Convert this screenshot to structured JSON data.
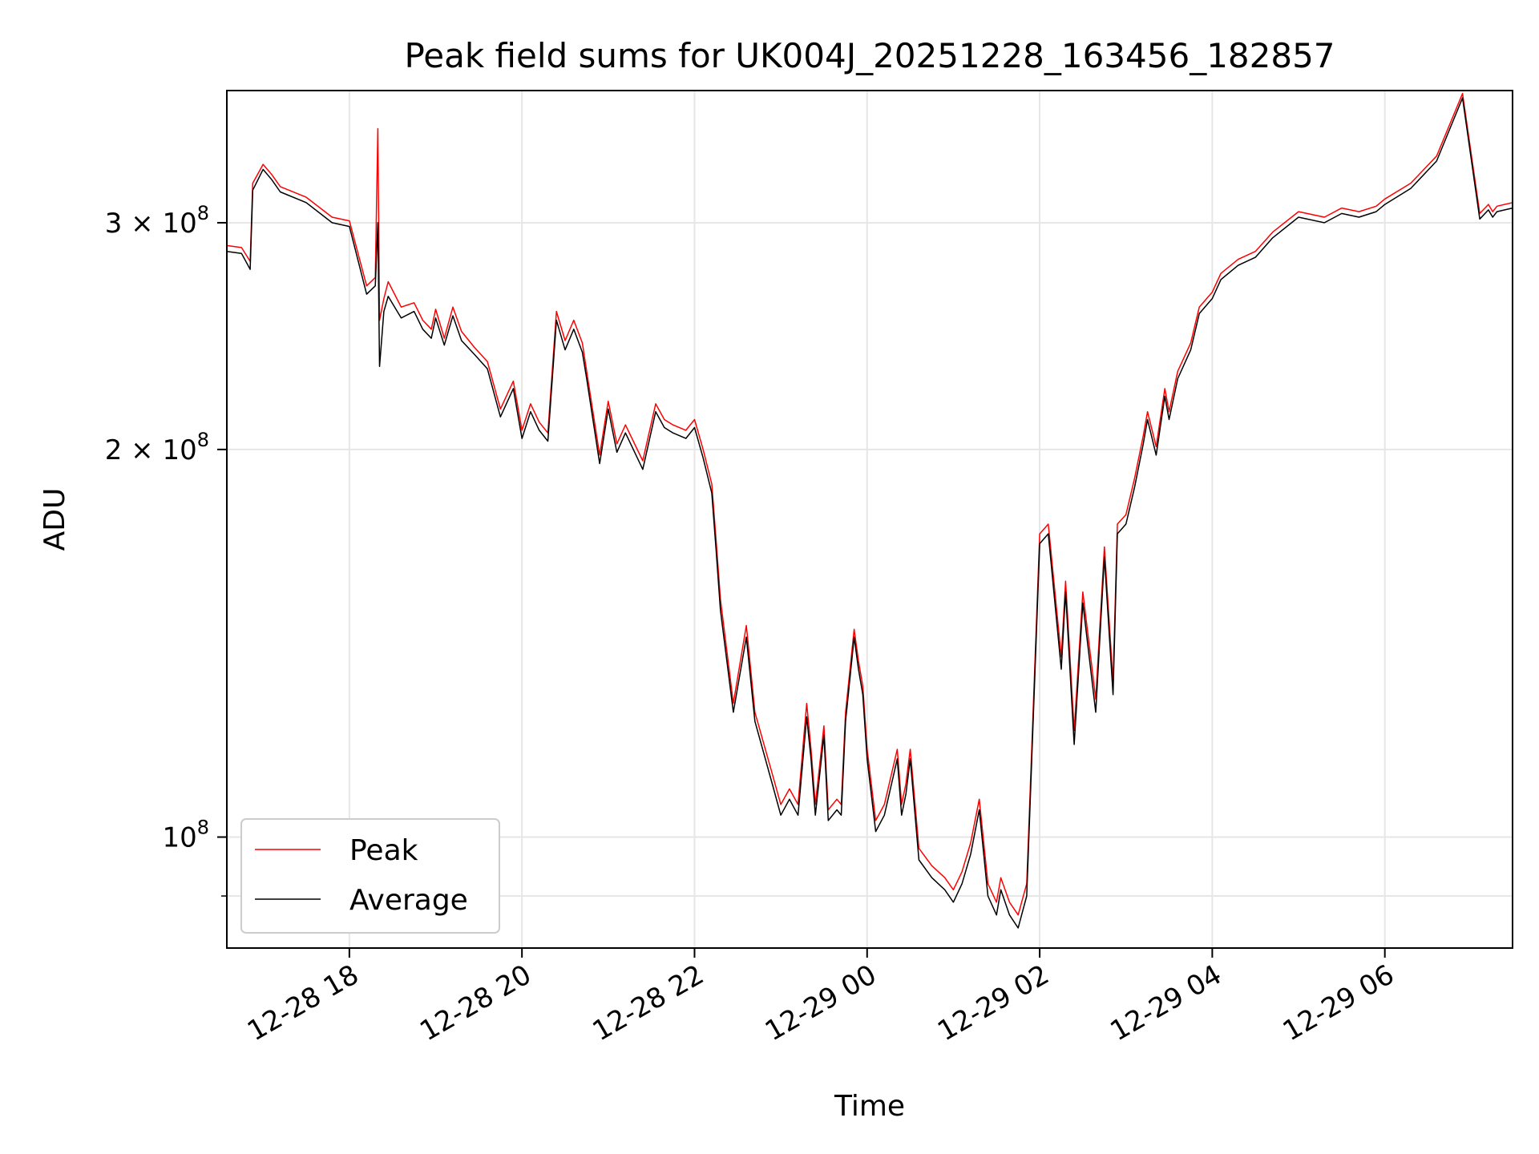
{
  "chart_data": {
    "type": "line",
    "title": "Peak field sums for UK004J_20251228_163456_182857",
    "xlabel": "Time",
    "ylabel": "ADU",
    "yscale": "log",
    "ylim": [
      82000000,
      380000000
    ],
    "xlim_hours": [
      16.58,
      31.48
    ],
    "grid": true,
    "legend_position": "lower-left",
    "x_ticks": [
      {
        "hours": 18,
        "label": "12-28 18"
      },
      {
        "hours": 20,
        "label": "12-28 20"
      },
      {
        "hours": 22,
        "label": "12-28 22"
      },
      {
        "hours": 24,
        "label": "12-29 00"
      },
      {
        "hours": 26,
        "label": "12-29 02"
      },
      {
        "hours": 28,
        "label": "12-29 04"
      },
      {
        "hours": 30,
        "label": "12-29 06"
      }
    ],
    "y_ticks": [
      {
        "value": 300000000,
        "label": "3 × 10",
        "exp": "8"
      },
      {
        "value": 200000000,
        "label": "2 × 10",
        "exp": "8"
      },
      {
        "value": 100000000,
        "label": "10",
        "exp": "8"
      }
    ],
    "y_minor_ticks": [
      90000000
    ],
    "series": [
      {
        "name": "Peak",
        "color": "#ff0000",
        "x_hours": [
          16.58,
          16.75,
          16.85,
          16.88,
          17.0,
          17.1,
          17.2,
          17.5,
          17.8,
          18.0,
          18.2,
          18.3,
          18.33,
          18.35,
          18.4,
          18.45,
          18.6,
          18.75,
          18.85,
          18.95,
          19.0,
          19.1,
          19.2,
          19.3,
          19.45,
          19.6,
          19.75,
          19.9,
          20.0,
          20.1,
          20.2,
          20.3,
          20.4,
          20.5,
          20.6,
          20.7,
          20.75,
          20.9,
          21.0,
          21.1,
          21.2,
          21.4,
          21.55,
          21.65,
          21.75,
          21.9,
          22.0,
          22.1,
          22.2,
          22.25,
          22.3,
          22.45,
          22.6,
          22.7,
          22.9,
          23.0,
          23.1,
          23.2,
          23.3,
          23.35,
          23.4,
          23.5,
          23.55,
          23.65,
          23.7,
          23.75,
          23.85,
          23.9,
          23.95,
          24.0,
          24.1,
          24.2,
          24.35,
          24.4,
          24.45,
          24.5,
          24.6,
          24.75,
          24.9,
          25.0,
          25.1,
          25.2,
          25.3,
          25.4,
          25.5,
          25.55,
          25.65,
          25.75,
          25.85,
          26.0,
          26.1,
          26.25,
          26.3,
          26.4,
          26.5,
          26.65,
          26.75,
          26.85,
          26.9,
          27.0,
          27.1,
          27.2,
          27.25,
          27.35,
          27.45,
          27.5,
          27.6,
          27.75,
          27.85,
          28.0,
          28.1,
          28.3,
          28.5,
          28.7,
          29.0,
          29.3,
          29.5,
          29.7,
          29.9,
          30.0,
          30.3,
          30.6,
          30.9,
          31.1,
          31.2,
          31.25,
          31.3,
          31.48
        ],
        "values": [
          288000000,
          287000000,
          280000000,
          322000000,
          333000000,
          327000000,
          320000000,
          314000000,
          303000000,
          301000000,
          268000000,
          272000000,
          355000000,
          252000000,
          262000000,
          270000000,
          258000000,
          260000000,
          252000000,
          248000000,
          257000000,
          244000000,
          258000000,
          247000000,
          240000000,
          234000000,
          215000000,
          226000000,
          207000000,
          217000000,
          210000000,
          206000000,
          256000000,
          243000000,
          252000000,
          242000000,
          230000000,
          198000000,
          218000000,
          202000000,
          209000000,
          196000000,
          217000000,
          211000000,
          209000000,
          207000000,
          211000000,
          200000000,
          188000000,
          170000000,
          153000000,
          127000000,
          146000000,
          125000000,
          112000000,
          106000000,
          109000000,
          106000000,
          127000000,
          117000000,
          106000000,
          122000000,
          105000000,
          107000000,
          106000000,
          125000000,
          145000000,
          137000000,
          131000000,
          117000000,
          103000000,
          106000000,
          117000000,
          106000000,
          110000000,
          117000000,
          98000000,
          95000000,
          93000000,
          91000000,
          94000000,
          99000000,
          107000000,
          92000000,
          89000000,
          93000000,
          89000000,
          87000000,
          92000000,
          172000000,
          175000000,
          138000000,
          158000000,
          121000000,
          155000000,
          128000000,
          168000000,
          132000000,
          175000000,
          178000000,
          190000000,
          205000000,
          214000000,
          201000000,
          223000000,
          214000000,
          230000000,
          242000000,
          258000000,
          265000000,
          274000000,
          281000000,
          285000000,
          295000000,
          306000000,
          303000000,
          308000000,
          306000000,
          309000000,
          313000000,
          322000000,
          338000000,
          378000000,
          305000000,
          310000000,
          306000000,
          309000000,
          311000000
        ]
      },
      {
        "name": "Average",
        "color": "#000000",
        "x_hours": [
          16.58,
          16.75,
          16.85,
          16.88,
          17.0,
          17.1,
          17.2,
          17.5,
          17.8,
          18.0,
          18.2,
          18.3,
          18.33,
          18.35,
          18.4,
          18.45,
          18.6,
          18.75,
          18.85,
          18.95,
          19.0,
          19.1,
          19.2,
          19.3,
          19.45,
          19.6,
          19.75,
          19.9,
          20.0,
          20.1,
          20.2,
          20.3,
          20.4,
          20.5,
          20.6,
          20.7,
          20.75,
          20.9,
          21.0,
          21.1,
          21.2,
          21.4,
          21.55,
          21.65,
          21.75,
          21.9,
          22.0,
          22.1,
          22.2,
          22.25,
          22.3,
          22.45,
          22.6,
          22.7,
          22.9,
          23.0,
          23.1,
          23.2,
          23.3,
          23.35,
          23.4,
          23.5,
          23.55,
          23.65,
          23.7,
          23.75,
          23.85,
          23.9,
          23.95,
          24.0,
          24.1,
          24.2,
          24.35,
          24.4,
          24.45,
          24.5,
          24.6,
          24.75,
          24.9,
          25.0,
          25.1,
          25.2,
          25.3,
          25.4,
          25.5,
          25.55,
          25.65,
          25.75,
          25.85,
          26.0,
          26.1,
          26.25,
          26.3,
          26.4,
          26.5,
          26.65,
          26.75,
          26.85,
          26.9,
          27.0,
          27.1,
          27.2,
          27.25,
          27.35,
          27.45,
          27.5,
          27.6,
          27.75,
          27.85,
          28.0,
          28.1,
          28.3,
          28.5,
          28.7,
          29.0,
          29.3,
          29.5,
          29.7,
          29.9,
          30.0,
          30.3,
          30.6,
          30.9,
          31.1,
          31.2,
          31.25,
          31.3,
          31.48
        ],
        "values": [
          285000000,
          284000000,
          276000000,
          318000000,
          330000000,
          324000000,
          317000000,
          311000000,
          300000000,
          298000000,
          264000000,
          268000000,
          300000000,
          232000000,
          256000000,
          263000000,
          253000000,
          256000000,
          248000000,
          244000000,
          253000000,
          241000000,
          254000000,
          243000000,
          237000000,
          231000000,
          212000000,
          223000000,
          204000000,
          214000000,
          207000000,
          203000000,
          252000000,
          239000000,
          248000000,
          238000000,
          227000000,
          195000000,
          215000000,
          199000000,
          206000000,
          193000000,
          214000000,
          208000000,
          206000000,
          204000000,
          208000000,
          197000000,
          185000000,
          167000000,
          150000000,
          125000000,
          143000000,
          123000000,
          110000000,
          104000000,
          107000000,
          104000000,
          124000000,
          115000000,
          104000000,
          120000000,
          103000000,
          105000000,
          104000000,
          123000000,
          143000000,
          135000000,
          129000000,
          115000000,
          101000000,
          104000000,
          115000000,
          104000000,
          108000000,
          115000000,
          96000000,
          93000000,
          91000000,
          89000000,
          92000000,
          97000000,
          105000000,
          90000000,
          87000000,
          91000000,
          87000000,
          85000000,
          90000000,
          169000000,
          172000000,
          135000000,
          155000000,
          118000000,
          152000000,
          125000000,
          165000000,
          129000000,
          172000000,
          175000000,
          187000000,
          202000000,
          211000000,
          198000000,
          220000000,
          211000000,
          227000000,
          239000000,
          255000000,
          262000000,
          271000000,
          278000000,
          282000000,
          292000000,
          303000000,
          300000000,
          305000000,
          303000000,
          306000000,
          310000000,
          319000000,
          335000000,
          375000000,
          302000000,
          307000000,
          303000000,
          306000000,
          308000000
        ]
      }
    ]
  }
}
